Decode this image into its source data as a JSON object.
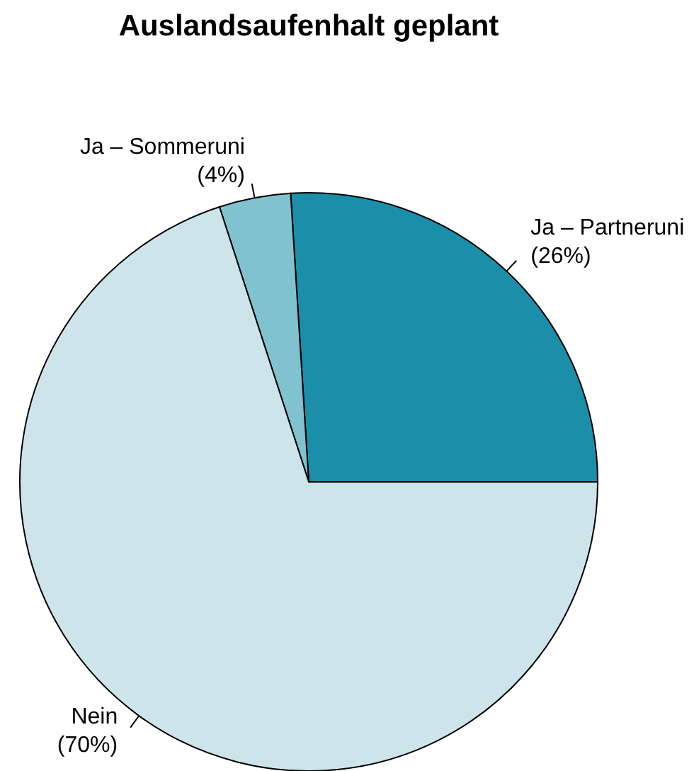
{
  "chart_data": {
    "type": "pie",
    "title": "Auslandsaufenhalt geplant",
    "categories": [
      "Ja – Partneruni",
      "Ja – Sommeruni",
      "Nein"
    ],
    "values": [
      26,
      4,
      70
    ],
    "colors": [
      "#1b8fa9",
      "#81c2d0",
      "#cde5ea"
    ],
    "value_labels": [
      "(26%)",
      "(4%)",
      "(70%)"
    ]
  }
}
